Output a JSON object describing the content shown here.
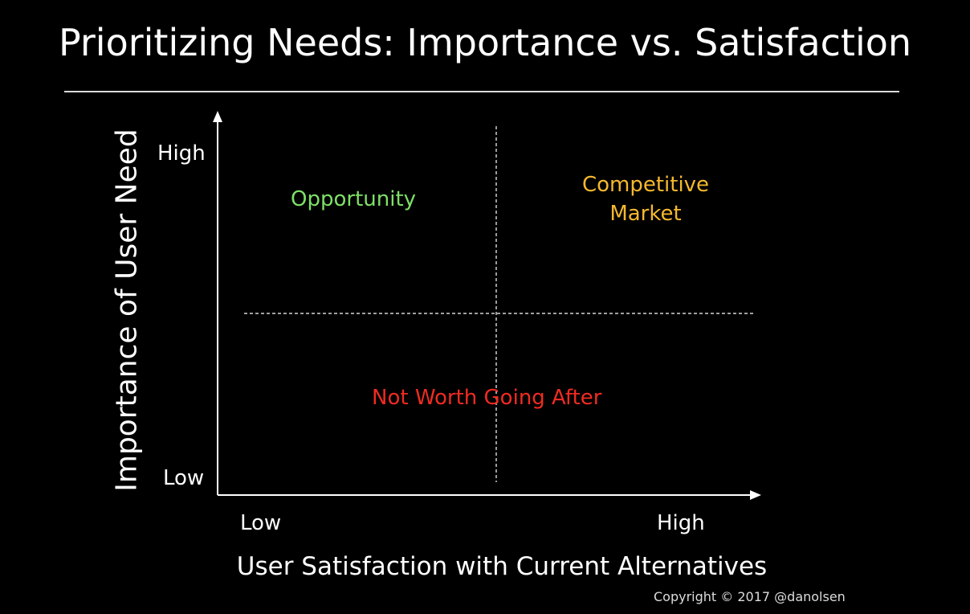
{
  "title": "Prioritizing Needs: Importance vs. Satisfaction",
  "axes": {
    "y_label": "Importance of User Need",
    "x_label": "User Satisfaction with Current Alternatives",
    "y_high": "High",
    "y_low": "Low",
    "x_low": "Low",
    "x_high": "High"
  },
  "quadrants": {
    "top_left": {
      "label": "Opportunity",
      "color": "#7ee067"
    },
    "top_right": {
      "line1": "Competitive",
      "line2": "Market",
      "color": "#f5b82e"
    },
    "bottom": {
      "label": "Not Worth Going After",
      "color": "#ef2b22"
    }
  },
  "copyright": "Copyright © 2017 @danolsen"
}
